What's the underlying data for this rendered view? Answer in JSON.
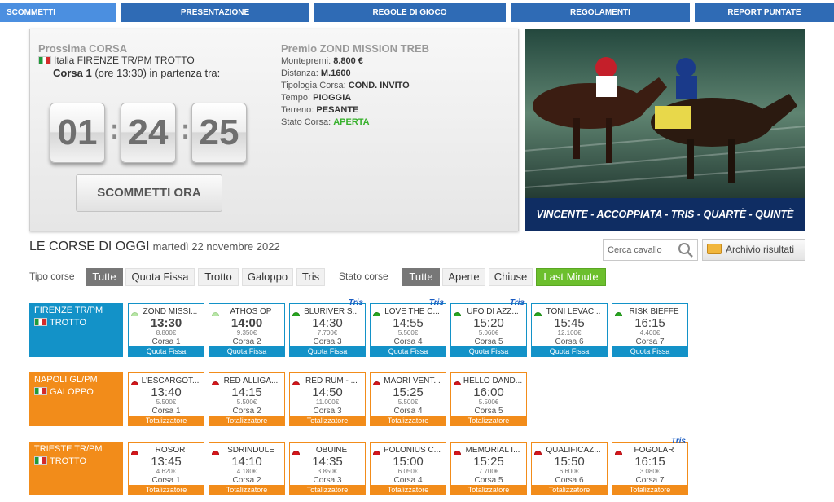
{
  "nav": {
    "items": [
      "SCOMMETTI",
      "PRESENTAZIONE",
      "REGOLE DI GIOCO",
      "REGOLAMENTI",
      "REPORT PUNTATE"
    ]
  },
  "next_race": {
    "title": "Prossima CORSA",
    "track": "Italia FIRENZE TR/PM TROTTO",
    "race_label": "Corsa 1",
    "race_suffix": "(ore 13:30) in partenza tra:",
    "countdown": {
      "hours": "01",
      "minutes": "24",
      "seconds": "25"
    },
    "bet_button": "SCOMMETTI ORA"
  },
  "prize": {
    "title": "Premio ZOND MISSION TREB",
    "rows": [
      {
        "label": "Montepremi:",
        "value": "8.800 €"
      },
      {
        "label": "Distanza:",
        "value": "M.1600"
      },
      {
        "label": "Tipologia Corsa:",
        "value": "COND. INVITO"
      },
      {
        "label": "Tempo:",
        "value": "PIOGGIA"
      },
      {
        "label": "Terreno:",
        "value": "PESANTE"
      },
      {
        "label": "Stato Corsa:",
        "value": "APERTA",
        "color": "#36b02b"
      }
    ]
  },
  "promo": {
    "caption": "VINCENTE - ACCOPPIATA - TRIS - QUARTÈ - QUINTÈ"
  },
  "today": {
    "title": "LE CORSE DI OGGI",
    "date": "martedì 22 novembre 2022",
    "search_placeholder": "Cerca cavallo",
    "archive_label": "Archivio risultati",
    "tipo_label": "Tipo corse",
    "tipo_filters": [
      "Tutte",
      "Quota Fissa",
      "Trotto",
      "Galoppo",
      "Tris"
    ],
    "stato_label": "Stato corse",
    "stato_filters": [
      "Tutte",
      "Aperte",
      "Chiuse",
      "Last Minute"
    ]
  },
  "venues": [
    {
      "name": "FIRENZE TR/PM",
      "type": "TROTTO",
      "color": "#1392c8",
      "races": [
        {
          "name": "ZOND MISSI...",
          "time": "13:30",
          "prize": "8.800€",
          "race": "Corsa 1",
          "footer": "Quota Fissa",
          "status": "lightgreen",
          "tris": ""
        },
        {
          "name": "ATHOS OP",
          "time": "14:00",
          "prize": "9.350€",
          "race": "Corsa 2",
          "footer": "Quota Fissa",
          "status": "lightgreen",
          "tris": ""
        },
        {
          "name": "BLURIVER S...",
          "time": "14:30",
          "prize": "7.700€",
          "race": "Corsa 3",
          "footer": "Quota Fissa",
          "status": "green",
          "tris": "Tris"
        },
        {
          "name": "LOVE THE C...",
          "time": "14:55",
          "prize": "5.500€",
          "race": "Corsa 4",
          "footer": "Quota Fissa",
          "status": "green",
          "tris": "Tris"
        },
        {
          "name": "UFO DI AZZ...",
          "time": "15:20",
          "prize": "5.060€",
          "race": "Corsa 5",
          "footer": "Quota Fissa",
          "status": "green",
          "tris": "Tris"
        },
        {
          "name": "TONI LEVAC...",
          "time": "15:45",
          "prize": "12.100€",
          "race": "Corsa 6",
          "footer": "Quota Fissa",
          "status": "green",
          "tris": ""
        },
        {
          "name": "RISK BIEFFE",
          "time": "16:15",
          "prize": "4.400€",
          "race": "Corsa 7",
          "footer": "Quota Fissa",
          "status": "green",
          "tris": ""
        }
      ]
    },
    {
      "name": "NAPOLI GL/PM",
      "type": "GALOPPO",
      "color": "#f28c1a",
      "races": [
        {
          "name": "L'ESCARGOT...",
          "time": "13:40",
          "prize": "5.500€",
          "race": "Corsa 1",
          "footer": "Totalizzatore",
          "status": "red",
          "tris": ""
        },
        {
          "name": "RED ALLIGA...",
          "time": "14:15",
          "prize": "5.500€",
          "race": "Corsa 2",
          "footer": "Totalizzatore",
          "status": "red",
          "tris": ""
        },
        {
          "name": "RED RUM - ...",
          "time": "14:50",
          "prize": "11.000€",
          "race": "Corsa 3",
          "footer": "Totalizzatore",
          "status": "red",
          "tris": ""
        },
        {
          "name": "MAORI VENT...",
          "time": "15:25",
          "prize": "5.500€",
          "race": "Corsa 4",
          "footer": "Totalizzatore",
          "status": "red",
          "tris": ""
        },
        {
          "name": "HELLO DAND...",
          "time": "16:00",
          "prize": "5.500€",
          "race": "Corsa 5",
          "footer": "Totalizzatore",
          "status": "red",
          "tris": ""
        }
      ]
    },
    {
      "name": "TRIESTE TR/PM",
      "type": "TROTTO",
      "color": "#f28c1a",
      "races": [
        {
          "name": "ROSOR",
          "time": "13:45",
          "prize": "4.620€",
          "race": "Corsa 1",
          "footer": "Totalizzatore",
          "status": "red",
          "tris": ""
        },
        {
          "name": "SDRINDULE",
          "time": "14:10",
          "prize": "4.180€",
          "race": "Corsa 2",
          "footer": "Totalizzatore",
          "status": "red",
          "tris": ""
        },
        {
          "name": "OBUINE",
          "time": "14:35",
          "prize": "3.850€",
          "race": "Corsa 3",
          "footer": "Totalizzatore",
          "status": "red",
          "tris": ""
        },
        {
          "name": "POLONIUS C...",
          "time": "15:00",
          "prize": "6.050€",
          "race": "Corsa 4",
          "footer": "Totalizzatore",
          "status": "red",
          "tris": ""
        },
        {
          "name": "MEMORIAL I...",
          "time": "15:25",
          "prize": "7.700€",
          "race": "Corsa 5",
          "footer": "Totalizzatore",
          "status": "red",
          "tris": ""
        },
        {
          "name": "QUALIFICAZ...",
          "time": "15:50",
          "prize": "6.600€",
          "race": "Corsa 6",
          "footer": "Totalizzatore",
          "status": "red",
          "tris": ""
        },
        {
          "name": "FOGOLAR",
          "time": "16:15",
          "prize": "3.080€",
          "race": "Corsa 7",
          "footer": "Totalizzatore",
          "status": "red",
          "tris": "Tris"
        }
      ]
    }
  ]
}
